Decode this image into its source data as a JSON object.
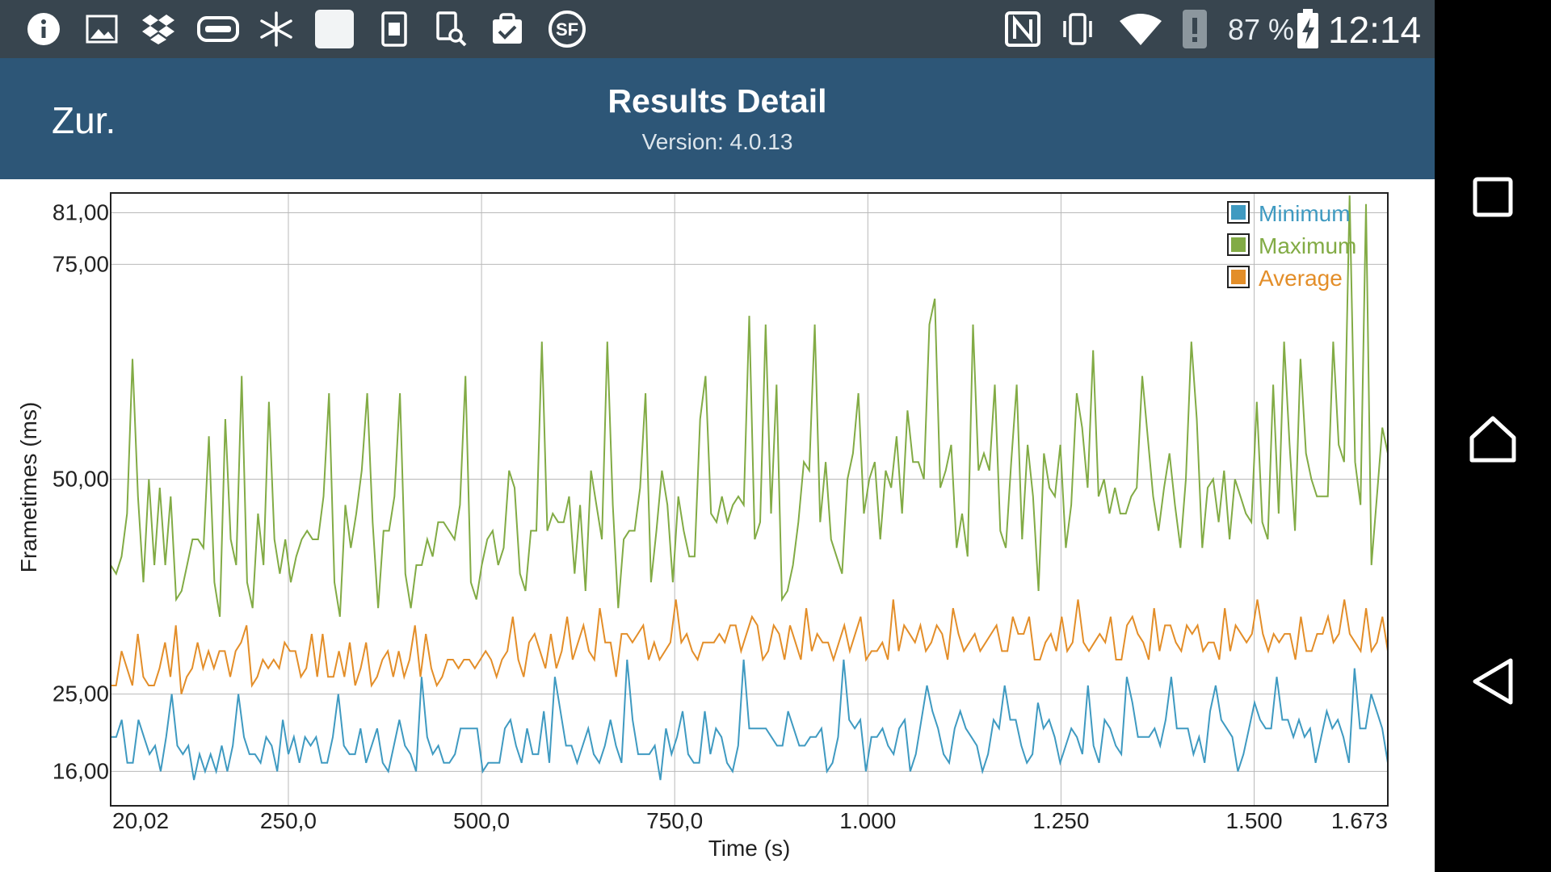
{
  "status_bar": {
    "battery": "87 %",
    "time": "12:14",
    "icons": [
      "info-icon",
      "image-icon",
      "dropbox-icon",
      "gamepad-icon",
      "snowflake-icon",
      "blank-app-icon",
      "sim-icon",
      "search-device-icon",
      "clipboard-check-icon",
      "sf-icon",
      "nfc-icon",
      "vibrate-icon",
      "wifi-icon",
      "notification-alert-icon",
      "battery-charging-icon"
    ]
  },
  "app_bar": {
    "back_label": "Zur.",
    "title": "Results Detail",
    "version": "Version: 4.0.13"
  },
  "nav_bar": {
    "icons": [
      "recents-icon",
      "home-icon",
      "back-icon"
    ]
  },
  "chart_data": {
    "type": "line",
    "xlabel": "Time (s)",
    "ylabel": "Frametimes (ms)",
    "xlim": [
      20.02,
      1673
    ],
    "ylim": [
      12,
      83.3
    ],
    "x_ticks": [
      {
        "value": 20.02,
        "label": "20,02"
      },
      {
        "value": 250,
        "label": "250,0"
      },
      {
        "value": 500,
        "label": "500,0"
      },
      {
        "value": 750,
        "label": "750,0"
      },
      {
        "value": 1000,
        "label": "1.000"
      },
      {
        "value": 1250,
        "label": "1.250"
      },
      {
        "value": 1500,
        "label": "1.500"
      },
      {
        "value": 1673,
        "label": "1.673"
      }
    ],
    "y_ticks": [
      {
        "value": 16,
        "label": "16,00"
      },
      {
        "value": 25,
        "label": "25,00"
      },
      {
        "value": 50,
        "label": "50,00"
      },
      {
        "value": 75,
        "label": "75,00"
      },
      {
        "value": 81,
        "label": "81,00"
      }
    ],
    "grid": true,
    "legend_position": "top-right",
    "series": [
      {
        "name": "Minimum",
        "color": "#3f9ac1",
        "values": [
          20,
          20,
          22,
          17,
          17,
          22,
          20,
          18,
          19,
          16,
          20,
          25,
          19,
          18,
          19,
          15,
          18,
          16,
          18,
          16,
          19,
          16,
          19,
          25,
          20,
          18,
          18,
          17,
          20,
          19,
          16,
          22,
          18,
          20,
          17,
          20,
          19,
          20,
          17,
          17,
          20,
          25,
          19,
          18,
          18,
          21,
          17,
          19,
          21,
          17,
          16,
          19,
          22,
          19,
          18,
          16,
          27,
          20,
          18,
          19,
          17,
          17,
          18,
          21,
          21,
          21,
          21,
          16,
          17,
          17,
          17,
          21,
          22,
          19,
          17,
          21,
          18,
          18,
          23,
          17,
          27,
          23,
          19,
          19,
          17,
          19,
          21,
          18,
          17,
          19,
          22,
          19,
          17,
          29,
          22,
          18,
          18,
          18,
          19,
          15,
          21,
          18,
          20,
          23,
          18,
          17,
          17,
          23,
          18,
          21,
          20,
          17,
          16,
          19,
          29,
          21,
          21,
          21,
          21,
          20,
          19,
          19,
          23,
          21,
          19,
          19,
          20,
          20,
          21,
          16,
          17,
          20,
          29,
          22,
          21,
          22,
          16,
          20,
          20,
          21,
          19,
          18,
          21,
          22,
          16,
          18,
          22,
          26,
          23,
          21,
          18,
          17,
          21,
          23,
          21,
          20,
          19,
          16,
          18,
          22,
          21,
          26,
          22,
          22,
          19,
          17,
          18,
          24,
          21,
          22,
          20,
          17,
          19,
          21,
          20,
          18,
          26,
          19,
          17,
          22,
          21,
          19,
          18,
          27,
          24,
          20,
          20,
          20,
          21,
          19,
          22,
          27,
          21,
          21,
          21,
          18,
          20,
          17,
          23,
          26,
          22,
          21,
          20,
          16,
          18,
          21,
          24,
          22,
          21,
          21,
          27,
          22,
          22,
          20,
          22,
          20,
          21,
          17,
          20,
          23,
          21,
          22,
          20,
          17,
          28,
          21,
          21,
          25,
          23,
          21,
          17
        ]
      },
      {
        "name": "Maximum",
        "color": "#82ab45",
        "values": [
          40,
          39,
          41,
          46,
          64,
          48,
          38,
          50,
          40,
          49,
          40,
          48,
          36,
          37,
          40,
          43,
          43,
          42,
          55,
          38,
          34,
          57,
          43,
          40,
          62,
          38,
          35,
          46,
          40,
          59,
          43,
          39,
          43,
          38,
          41,
          43,
          44,
          43,
          43,
          48,
          60,
          38,
          34,
          47,
          42,
          46,
          51,
          60,
          45,
          35,
          44,
          44,
          48,
          60,
          39,
          35,
          40,
          40,
          43,
          41,
          45,
          45,
          44,
          43,
          47,
          62,
          38,
          36,
          40,
          43,
          44,
          40,
          42,
          51,
          49,
          39,
          37,
          44,
          44,
          66,
          44,
          46,
          45,
          45,
          48,
          39,
          47,
          37,
          51,
          47,
          43,
          66,
          47,
          35,
          43,
          44,
          44,
          49,
          60,
          38,
          44,
          51,
          47,
          38,
          48,
          44,
          41,
          41,
          57,
          62,
          46,
          45,
          48,
          45,
          47,
          48,
          47,
          69,
          43,
          45,
          68,
          46,
          61,
          36,
          37,
          40,
          45,
          52,
          51,
          68,
          45,
          52,
          43,
          41,
          39,
          50,
          53,
          60,
          46,
          50,
          52,
          43,
          51,
          49,
          55,
          46,
          58,
          52,
          52,
          50,
          68,
          71,
          49,
          51,
          54,
          42,
          46,
          41,
          68,
          51,
          53,
          51,
          61,
          44,
          42,
          52,
          61,
          43,
          54,
          48,
          37,
          53,
          49,
          48,
          54,
          42,
          47,
          60,
          56,
          49,
          65,
          48,
          50,
          46,
          49,
          46,
          46,
          48,
          49,
          62,
          55,
          48,
          44,
          49,
          53,
          47,
          42,
          50,
          66,
          57,
          42,
          49,
          50,
          45,
          51,
          43,
          50,
          48,
          46,
          45,
          59,
          45,
          43,
          61,
          46,
          66,
          54,
          44,
          64,
          53,
          50,
          48,
          48,
          48,
          66,
          54,
          52,
          83,
          52,
          47,
          82,
          40,
          48,
          56,
          53
        ]
      },
      {
        "name": "Average",
        "color": "#e38e29",
        "values": [
          26,
          26,
          30,
          28,
          26,
          32,
          27,
          26,
          26,
          28,
          31,
          27,
          33,
          25,
          27,
          28,
          31,
          28,
          30,
          28,
          30,
          30,
          27,
          30,
          31,
          33,
          26,
          27,
          29,
          28,
          29,
          28,
          31,
          30,
          30,
          27,
          28,
          32,
          27,
          32,
          27,
          27,
          30,
          27,
          31,
          26,
          28,
          31,
          26,
          27,
          29,
          30,
          27,
          30,
          27,
          29,
          33,
          27,
          32,
          28,
          26,
          27,
          29,
          29,
          28,
          29,
          29,
          28,
          29,
          30,
          29,
          27,
          29,
          30,
          34,
          29,
          27,
          31,
          32,
          30,
          28,
          32,
          28,
          30,
          34,
          29,
          31,
          33,
          30,
          29,
          35,
          31,
          31,
          27,
          32,
          32,
          31,
          32,
          33,
          29,
          31,
          29,
          30,
          31,
          36,
          31,
          32,
          30,
          29,
          31,
          31,
          31,
          32,
          31,
          33,
          33,
          30,
          32,
          34,
          33,
          29,
          30,
          33,
          32,
          29,
          33,
          31,
          29,
          35,
          30,
          32,
          31,
          31,
          29,
          31,
          33,
          30,
          32,
          34,
          29,
          30,
          30,
          31,
          29,
          36,
          30,
          33,
          32,
          31,
          33,
          30,
          31,
          33,
          32,
          29,
          35,
          32,
          30,
          31,
          32,
          30,
          31,
          32,
          33,
          30,
          30,
          34,
          32,
          32,
          34,
          29,
          29,
          31,
          32,
          30,
          34,
          30,
          31,
          36,
          31,
          30,
          31,
          32,
          31,
          34,
          29,
          29,
          33,
          34,
          32,
          31,
          29,
          35,
          30,
          33,
          33,
          31,
          30,
          33,
          32,
          33,
          30,
          31,
          31,
          29,
          35,
          30,
          33,
          32,
          31,
          32,
          36,
          32,
          30,
          32,
          31,
          32,
          32,
          29,
          34,
          30,
          30,
          32,
          32,
          34,
          31,
          32,
          36,
          32,
          31,
          30,
          35,
          30,
          31,
          34,
          30
        ]
      }
    ]
  }
}
